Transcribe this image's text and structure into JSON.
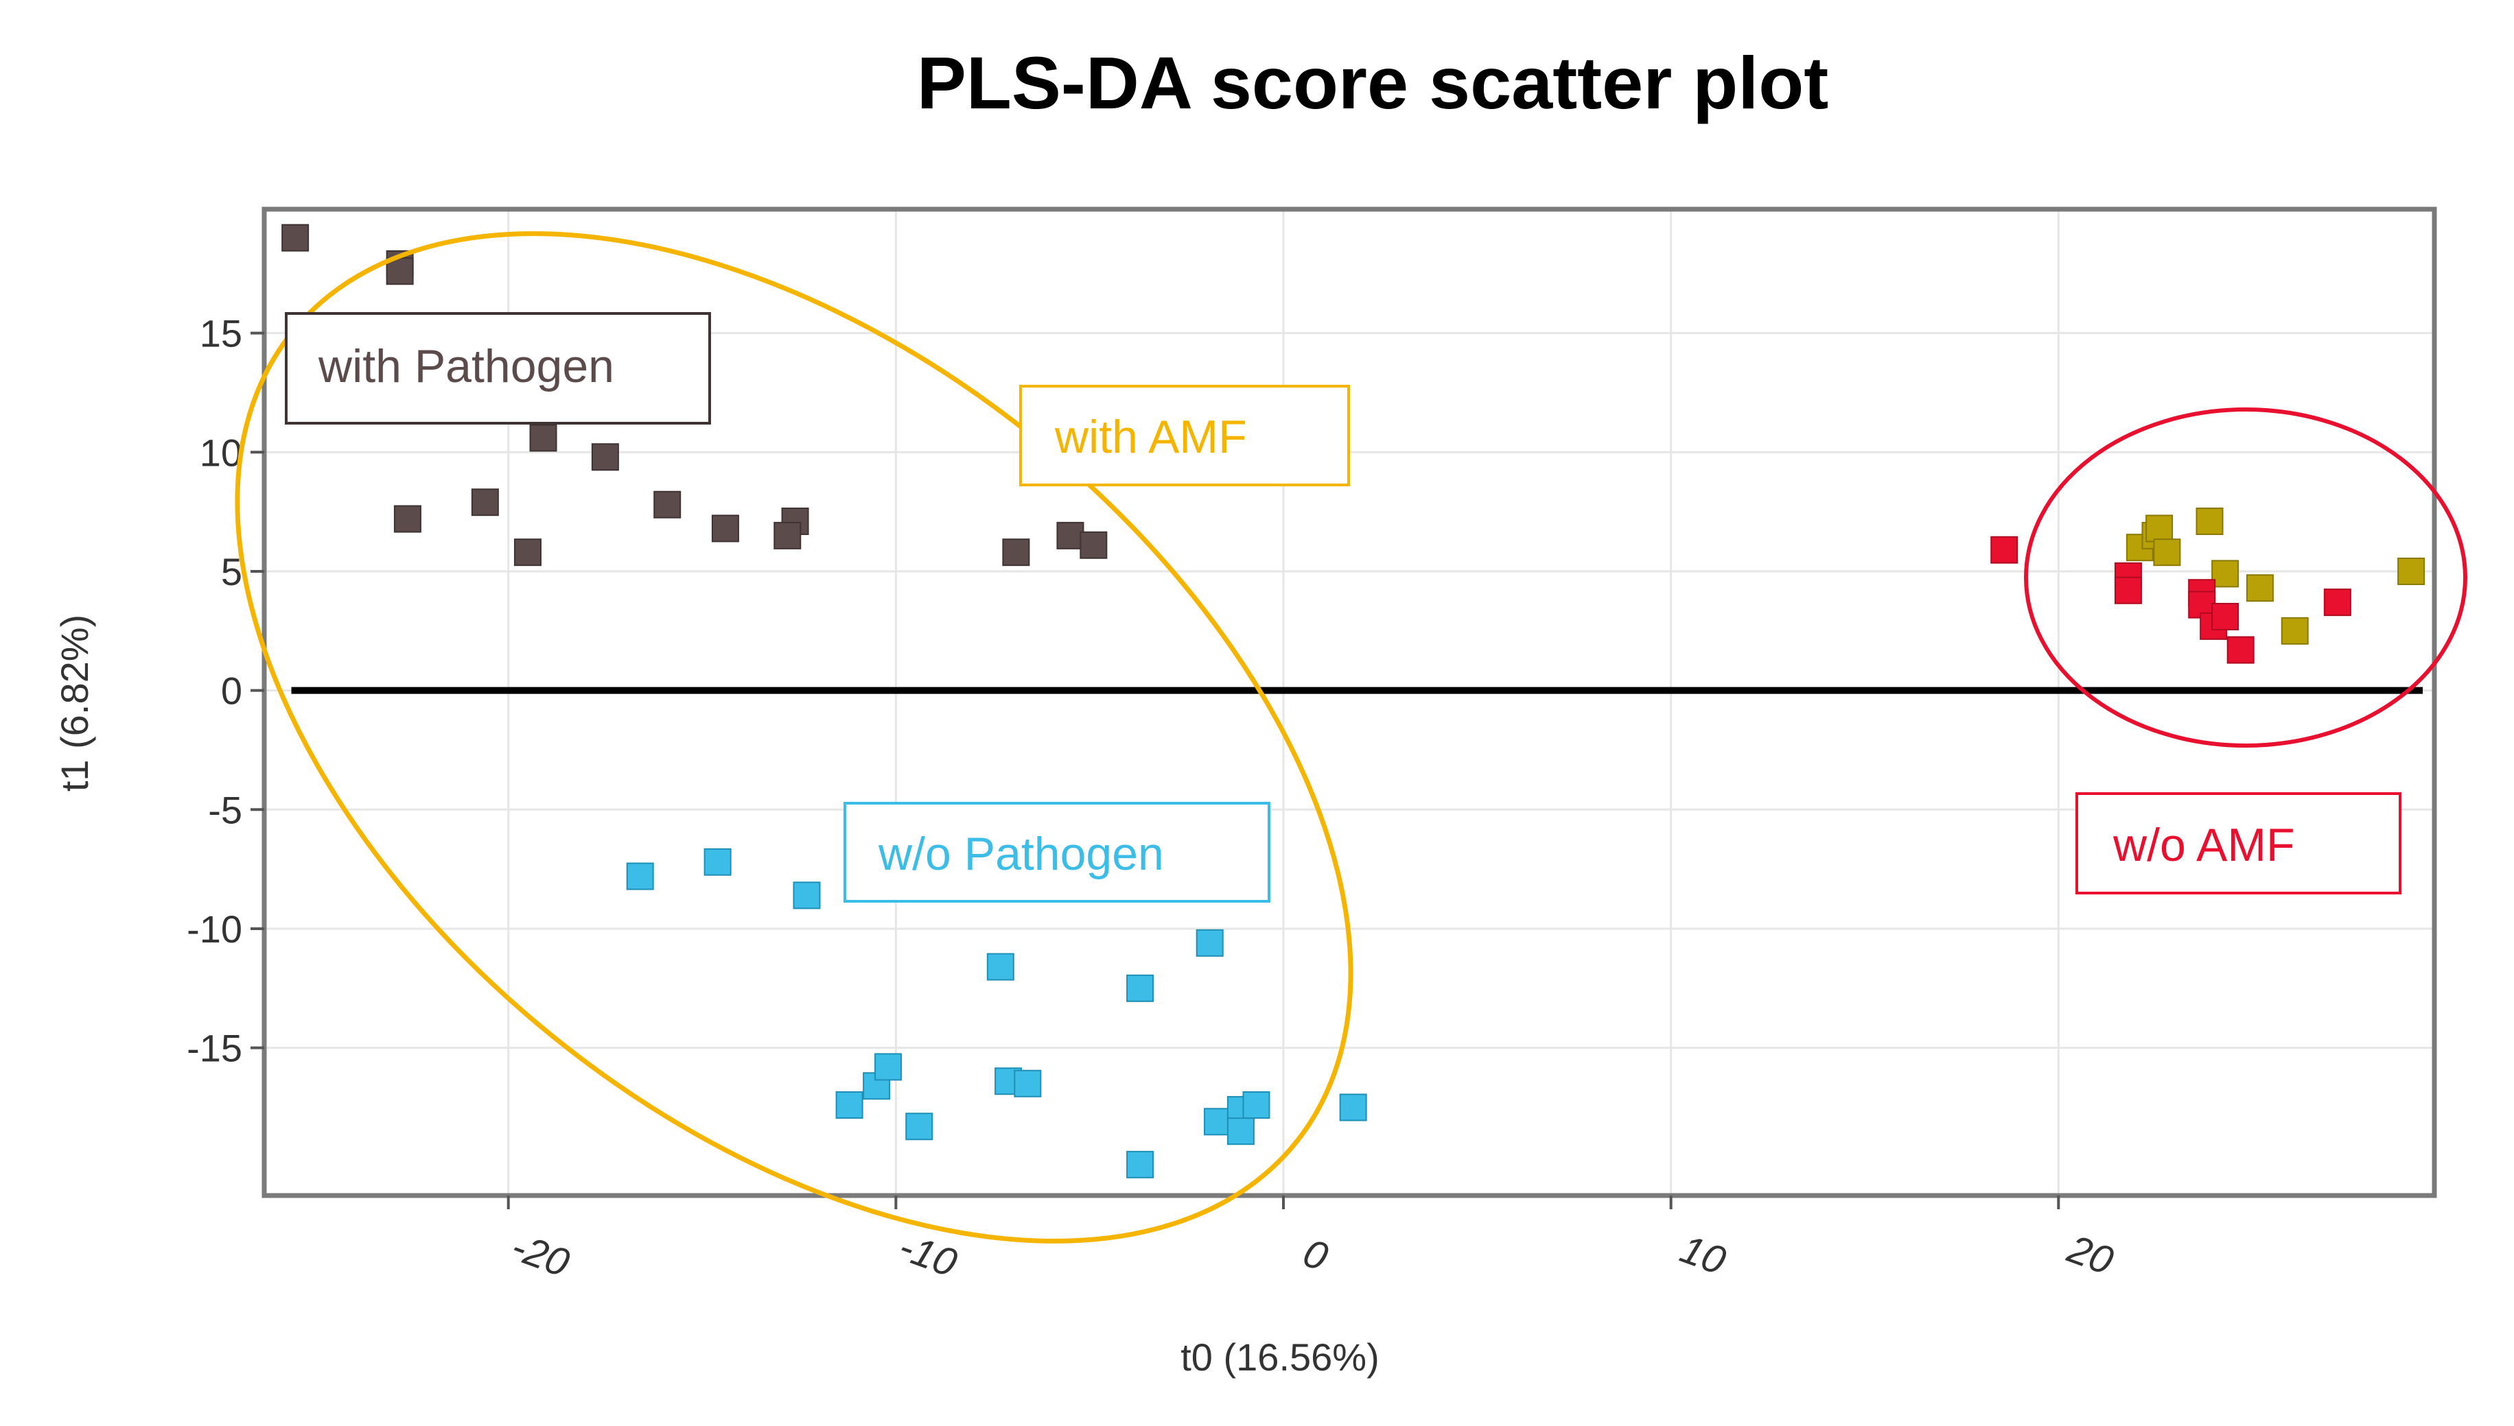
{
  "chart_data": {
    "type": "scatter",
    "title": "PLS-DA score scatter plot",
    "xlabel": "t0 (16.56%)",
    "ylabel": "t1 (6.82%)",
    "xlim": [
      -26.3,
      29.7
    ],
    "ylim": [
      -21.2,
      20.2
    ],
    "x_ticks": [
      -20,
      -10,
      0,
      10,
      20
    ],
    "x_tick_labels": [
      "-20",
      "-10",
      "0",
      "10",
      "20"
    ],
    "y_ticks": [
      15,
      10,
      5,
      0,
      -5,
      -10,
      -15
    ],
    "y_tick_labels": [
      "15",
      "10",
      "5",
      "0",
      "-5",
      "-10",
      "-15"
    ],
    "grid": true,
    "zero_line": true,
    "series": [
      {
        "name": "with Pathogen",
        "color": "#5c4b4b",
        "stroke": "#3f3333",
        "points": [
          [
            -25.5,
            19.0
          ],
          [
            -22.8,
            17.9
          ],
          [
            -22.8,
            17.6
          ],
          [
            -22.6,
            7.2
          ],
          [
            -20.6,
            7.9
          ],
          [
            -19.5,
            5.8
          ],
          [
            -19.1,
            10.6
          ],
          [
            -17.5,
            9.8
          ],
          [
            -15.9,
            7.8
          ],
          [
            -14.4,
            6.8
          ],
          [
            -12.6,
            7.1
          ],
          [
            -12.8,
            6.5
          ],
          [
            -6.9,
            5.8
          ],
          [
            -5.5,
            6.5
          ],
          [
            -4.9,
            6.1
          ]
        ]
      },
      {
        "name": "w/o Pathogen",
        "color": "#3bbde8",
        "stroke": "#1f8fb6",
        "points": [
          [
            -16.6,
            -7.8
          ],
          [
            -14.6,
            -7.2
          ],
          [
            -12.3,
            -8.6
          ],
          [
            -11.2,
            -17.4
          ],
          [
            -10.5,
            -16.6
          ],
          [
            -10.2,
            -15.8
          ],
          [
            -9.4,
            -18.3
          ],
          [
            -7.3,
            -11.6
          ],
          [
            -7.1,
            -16.4
          ],
          [
            -6.6,
            -16.5
          ],
          [
            -3.7,
            -12.5
          ],
          [
            -3.7,
            -19.9
          ],
          [
            -1.9,
            -10.6
          ],
          [
            -1.7,
            -18.1
          ],
          [
            -1.1,
            -17.6
          ],
          [
            -1.1,
            -18.5
          ],
          [
            -0.7,
            -17.4
          ],
          [
            1.8,
            -17.5
          ]
        ]
      },
      {
        "name": "with AMF",
        "color": "#b8a106",
        "stroke": "#8a7804",
        "points": [
          [
            22.1,
            6.0
          ],
          [
            22.5,
            6.5
          ],
          [
            22.6,
            6.8
          ],
          [
            22.8,
            5.8
          ],
          [
            23.9,
            7.1
          ],
          [
            24.3,
            4.9
          ],
          [
            25.2,
            4.3
          ],
          [
            26.1,
            2.5
          ],
          [
            29.1,
            5.0
          ]
        ]
      },
      {
        "name": "w/o AMF",
        "color": "#e8102e",
        "stroke": "#b00a20",
        "points": [
          [
            18.6,
            5.9
          ],
          [
            21.8,
            4.8
          ],
          [
            21.8,
            4.2
          ],
          [
            23.7,
            4.1
          ],
          [
            23.7,
            3.6
          ],
          [
            24.0,
            2.7
          ],
          [
            24.3,
            3.1
          ],
          [
            24.7,
            1.7
          ],
          [
            27.2,
            3.7
          ]
        ]
      }
    ],
    "annotations": [
      {
        "text": "with Pathogen",
        "color": "#5c4b4b",
        "box_border": "#3f3333"
      },
      {
        "text": "with AMF",
        "color": "#f5b400",
        "box_border": "#f5b400"
      },
      {
        "text": "w/o Pathogen",
        "color": "#3bbde8",
        "box_border": "#3bbde8"
      },
      {
        "text": "w/o AMF",
        "color": "#e8102e",
        "box_border": "#e8102e"
      }
    ],
    "ellipses": [
      {
        "group": "with Pathogen + w/o Pathogen",
        "color": "#f5b400"
      },
      {
        "group": "AMF cluster",
        "color": "#e8102e"
      }
    ]
  }
}
